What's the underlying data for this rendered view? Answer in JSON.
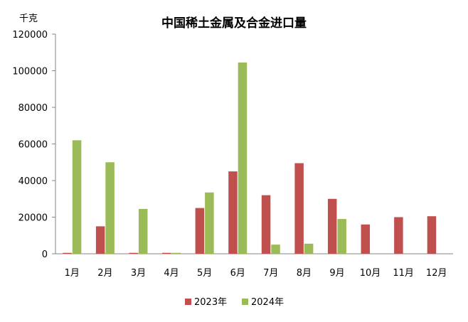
{
  "chart_data": {
    "type": "bar",
    "title": "中国稀土金属及合金进口量",
    "unit_label": "千克",
    "categories": [
      "1月",
      "2月",
      "3月",
      "4月",
      "5月",
      "6月",
      "7月",
      "8月",
      "9月",
      "10月",
      "11月",
      "12月"
    ],
    "series": [
      {
        "name": "2023年",
        "color": "#C0504D",
        "values": [
          500,
          15000,
          500,
          500,
          25000,
          45000,
          32000,
          49500,
          30000,
          16000,
          20000,
          20500
        ]
      },
      {
        "name": "2024年",
        "color": "#9BBB59",
        "values": [
          62000,
          50000,
          24500,
          500,
          33500,
          104500,
          5000,
          5500,
          19000,
          0,
          0,
          0
        ]
      }
    ],
    "y_ticks": [
      "0",
      "20000",
      "40000",
      "60000",
      "80000",
      "100000",
      "120000"
    ],
    "ylim": [
      0,
      120000
    ],
    "grid": false,
    "legend_position": "bottom"
  }
}
